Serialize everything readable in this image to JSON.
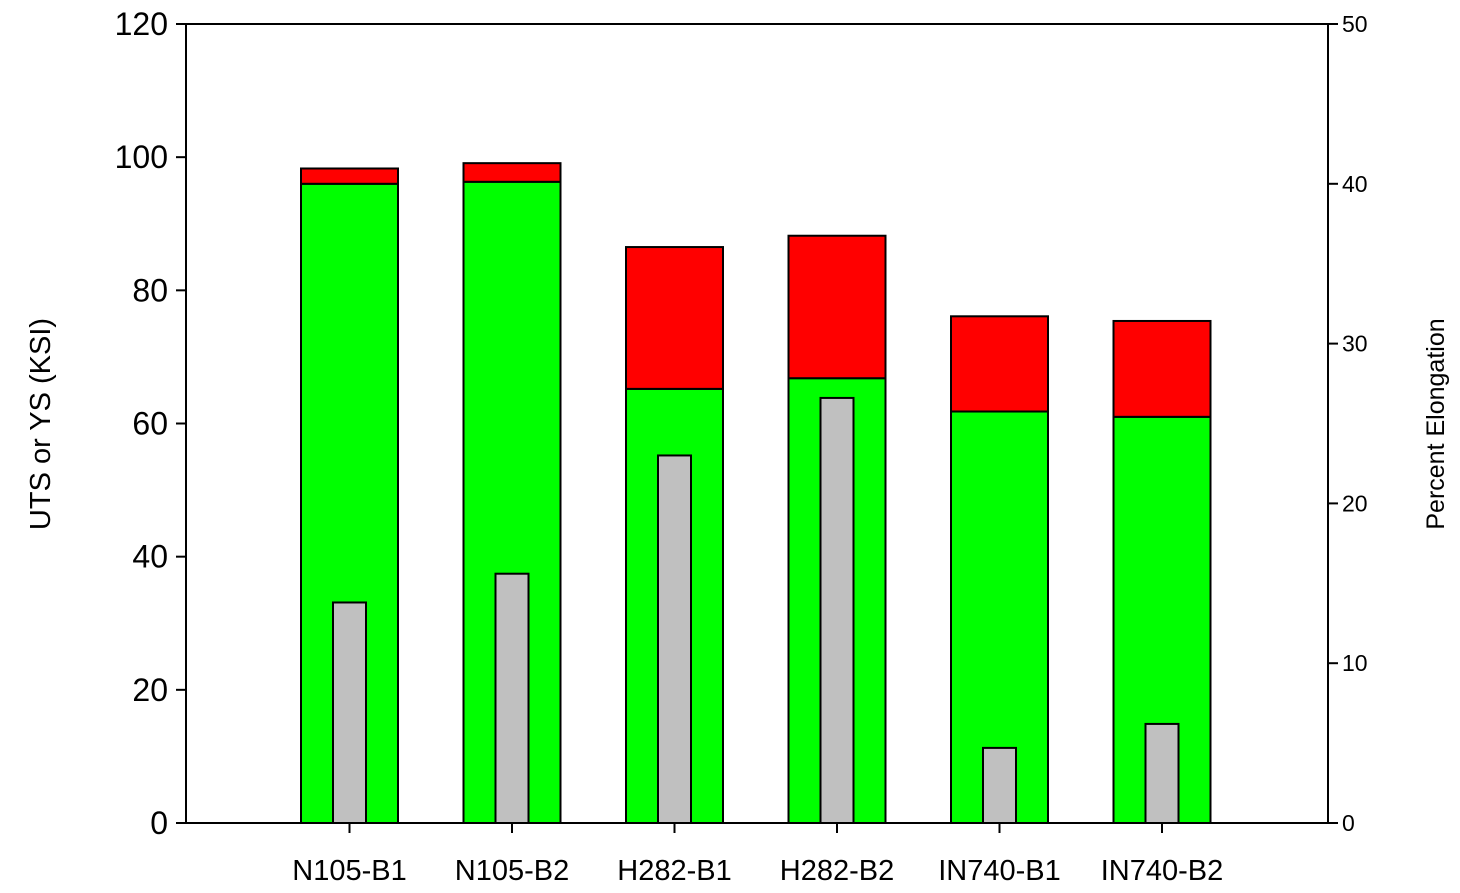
{
  "chart_data": {
    "type": "bar",
    "categories": [
      "N105-B1",
      "N105-B2",
      "H282-B1",
      "H282-B2",
      "IN740-B1",
      "IN740-B2"
    ],
    "series": [
      {
        "axis": "left",
        "stacked": true,
        "color": "#00ff00",
        "values": [
          96,
          96.3,
          65.2,
          66.8,
          61.8,
          61
        ]
      },
      {
        "axis": "left",
        "stacked": true,
        "color": "#ff0000",
        "values": [
          2.3,
          2.8,
          21.3,
          21.4,
          14.3,
          14.4
        ]
      },
      {
        "axis": "right",
        "color": "#c0c0c0",
        "values": [
          13.8,
          15.6,
          23,
          26.6,
          4.7,
          6.2
        ]
      }
    ],
    "ylabel": "UTS or YS (KSI)",
    "ylim": [
      0,
      120
    ],
    "yticks": [
      "0",
      "20",
      "40",
      "60",
      "80",
      "100",
      "120"
    ],
    "y2label": "Percent Elongation",
    "y2lim": [
      0,
      50
    ],
    "y2ticks": [
      "0",
      "10",
      "20",
      "30",
      "40",
      "50"
    ],
    "grid": false
  }
}
